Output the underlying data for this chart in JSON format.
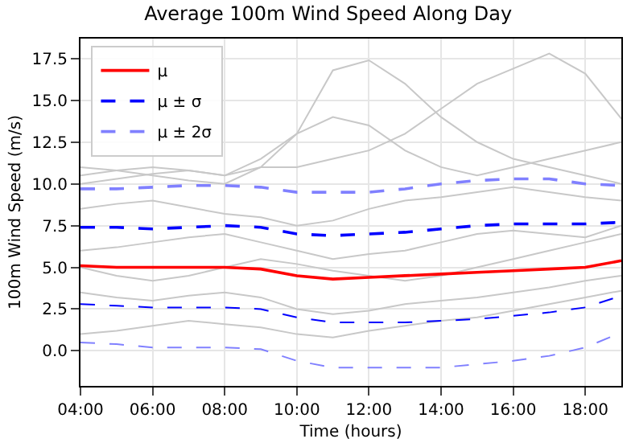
{
  "chart_data": {
    "type": "line",
    "title": "Average 100m Wind Speed Along Day",
    "xlabel": "Time (hours)",
    "ylabel": "100m Wind Speed (m/s)",
    "x": [
      4,
      5,
      6,
      7,
      8,
      9,
      10,
      11,
      12,
      13,
      14,
      15,
      16,
      17,
      18,
      19
    ],
    "xlim": [
      4,
      19
    ],
    "xticks": [
      {
        "value": 4,
        "label": "04:00"
      },
      {
        "value": 6,
        "label": "06:00"
      },
      {
        "value": 8,
        "label": "08:00"
      },
      {
        "value": 10,
        "label": "10:00"
      },
      {
        "value": 12,
        "label": "12:00"
      },
      {
        "value": 14,
        "label": "14:00"
      },
      {
        "value": 16,
        "label": "16:00"
      },
      {
        "value": 18,
        "label": "18:00"
      }
    ],
    "ylim": [
      -2.1,
      18.7
    ],
    "yticks": [
      {
        "value": 0,
        "label": "0.0"
      },
      {
        "value": 2.5,
        "label": "2.5"
      },
      {
        "value": 5,
        "label": "5.0"
      },
      {
        "value": 7.5,
        "label": "7.5"
      },
      {
        "value": 10,
        "label": "10.0"
      },
      {
        "value": 12.5,
        "label": "12.5"
      },
      {
        "value": 15,
        "label": "15.0"
      },
      {
        "value": 17.5,
        "label": "17.5"
      }
    ],
    "grid": true,
    "legend": "top left",
    "series": [
      {
        "color": "#c8c8c8",
        "values": [
          10.5,
          10.8,
          11,
          10.8,
          10.5,
          11,
          11,
          11.5,
          12,
          13,
          14.5,
          16,
          16.9,
          17.8,
          16.6,
          13.9
        ]
      },
      {
        "color": "#c8c8c8",
        "values": [
          10,
          10.3,
          10.6,
          10.8,
          10.5,
          11.5,
          13,
          16.8,
          17.4,
          16,
          14,
          12.5,
          11.5,
          11,
          10.5,
          10
        ]
      },
      {
        "color": "#c8c8c8",
        "values": [
          6,
          6.2,
          6.5,
          6.8,
          7,
          6.5,
          6,
          5.5,
          5.8,
          6,
          6.5,
          7,
          7.2,
          7,
          6.8,
          7.5
        ]
      },
      {
        "color": "#c8c8c8",
        "values": [
          3.5,
          3.2,
          3,
          3.3,
          3.5,
          3.2,
          2.5,
          2.2,
          2.4,
          2.8,
          3,
          3.2,
          3.5,
          3.8,
          4.2,
          4.5
        ]
      },
      {
        "color": "#c8c8c8",
        "values": [
          8.5,
          8.8,
          9,
          8.6,
          8.2,
          8,
          7.5,
          7.8,
          8.5,
          9,
          9.2,
          9.5,
          9.8,
          9.5,
          9.2,
          9
        ]
      },
      {
        "color": "#c8c8c8",
        "values": [
          1,
          1.2,
          1.5,
          1.8,
          1.6,
          1.4,
          1,
          0.8,
          1.2,
          1.5,
          1.8,
          2,
          2.4,
          2.8,
          3.2,
          3.6
        ]
      },
      {
        "color": "#c8c8c8",
        "values": [
          5,
          4.5,
          4.2,
          4.5,
          5,
          5.5,
          5.2,
          4.8,
          4.5,
          4.2,
          4.5,
          5,
          5.5,
          6,
          6.5,
          7
        ]
      },
      {
        "color": "#c8c8c8",
        "values": [
          11,
          10.8,
          10.5,
          10.2,
          10,
          11,
          13,
          14,
          13.5,
          12,
          11,
          10.5,
          11,
          11.5,
          12,
          12.5
        ]
      },
      {
        "name": "μ",
        "color": "#ff0000",
        "line_style": "solid",
        "values": [
          5.1,
          5.0,
          5.0,
          5.0,
          5.0,
          4.9,
          4.5,
          4.3,
          4.4,
          4.5,
          4.6,
          4.7,
          4.8,
          4.9,
          5.0,
          5.4
        ]
      },
      {
        "name": "μ ± σ",
        "color": "#0000ff",
        "line_style": "dashed",
        "values": [
          7.4,
          7.4,
          7.3,
          7.4,
          7.5,
          7.4,
          7.0,
          6.9,
          7.0,
          7.1,
          7.3,
          7.5,
          7.6,
          7.6,
          7.6,
          7.7
        ]
      },
      {
        "color": "#0000ff",
        "line_style": "dashed",
        "values": [
          2.8,
          2.7,
          2.6,
          2.6,
          2.6,
          2.5,
          2.0,
          1.7,
          1.7,
          1.7,
          1.8,
          1.9,
          2.1,
          2.3,
          2.6,
          3.3
        ]
      },
      {
        "name": "μ ± 2σ",
        "color": "#8080ff",
        "line_style": "dashed",
        "values": [
          9.7,
          9.7,
          9.8,
          9.9,
          9.9,
          9.8,
          9.5,
          9.5,
          9.5,
          9.7,
          10.0,
          10.2,
          10.3,
          10.3,
          10.0,
          9.9
        ]
      },
      {
        "color": "#8080ff",
        "line_style": "dashed",
        "values": [
          0.5,
          0.4,
          0.2,
          0.2,
          0.2,
          0.1,
          -0.6,
          -1.0,
          -1.0,
          -1.0,
          -1.0,
          -0.8,
          -0.6,
          -0.3,
          0.2,
          1.1
        ]
      }
    ]
  }
}
